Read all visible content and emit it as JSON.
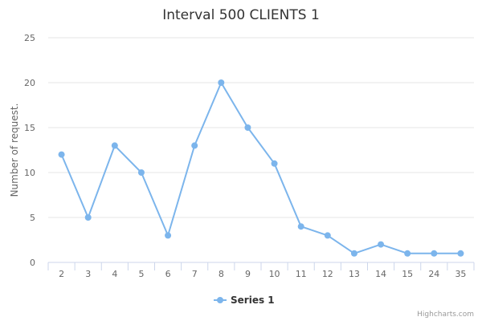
{
  "chart_data": {
    "type": "line",
    "title": "Interval 500 CLIENTS 1",
    "ylabel": "Number of request.",
    "xlabel": "",
    "categories": [
      "2",
      "3",
      "4",
      "5",
      "6",
      "7",
      "8",
      "9",
      "10",
      "11",
      "12",
      "13",
      "14",
      "15",
      "24",
      "35"
    ],
    "series": [
      {
        "name": "Series 1",
        "values": [
          12,
          5,
          13,
          10,
          3,
          13,
          20,
          15,
          11,
          4,
          3,
          1,
          2,
          1,
          1,
          1
        ]
      }
    ],
    "ylim": [
      0,
      25
    ],
    "yticks": [
      "0",
      "5",
      "10",
      "15",
      "20",
      "25"
    ],
    "grid": true,
    "legend": "bottom-center",
    "credit": "Highcharts.com",
    "color": "#7cb5ec"
  }
}
